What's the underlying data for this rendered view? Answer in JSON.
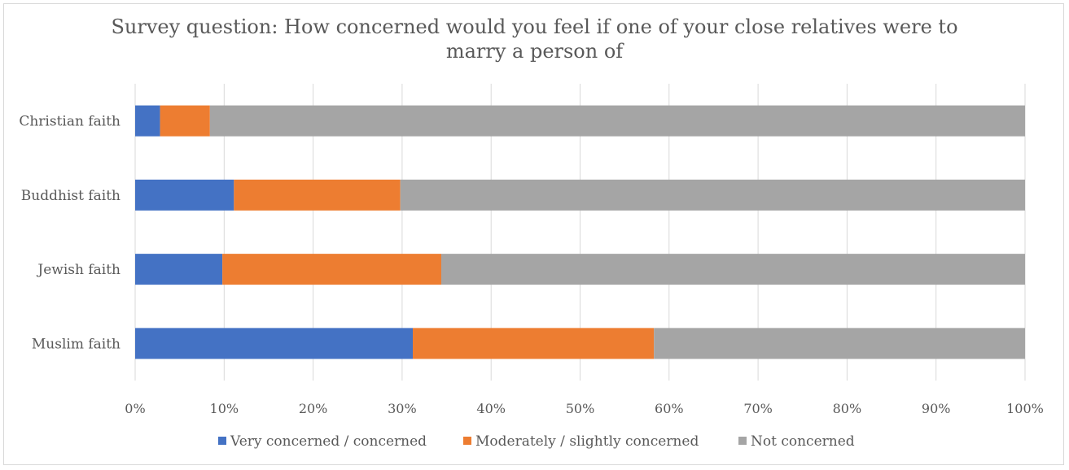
{
  "chart_data": {
    "type": "bar",
    "orientation": "horizontal",
    "stacked": true,
    "title_lines": [
      "Survey question: How concerned would you feel if one of your close relatives were to",
      "marry a person of"
    ],
    "categories": [
      "Christian faith",
      "Buddhist faith",
      "Jewish faith",
      "Muslim faith"
    ],
    "series": [
      {
        "name": "Very concerned / concerned",
        "color": "#4472c4",
        "values": [
          2.8,
          11.1,
          9.8,
          31.2
        ]
      },
      {
        "name": "Moderately / slightly concerned",
        "color": "#ed7d31",
        "values": [
          5.6,
          18.7,
          24.6,
          27.1
        ]
      },
      {
        "name": "Not concerned",
        "color": "#a5a5a5",
        "values": [
          91.6,
          70.2,
          65.6,
          41.7
        ]
      }
    ],
    "x_ticks": [
      "0%",
      "10%",
      "20%",
      "30%",
      "40%",
      "50%",
      "60%",
      "70%",
      "80%",
      "90%",
      "100%"
    ],
    "xlim": [
      0,
      100
    ],
    "grid": true,
    "legend_position": "bottom"
  }
}
